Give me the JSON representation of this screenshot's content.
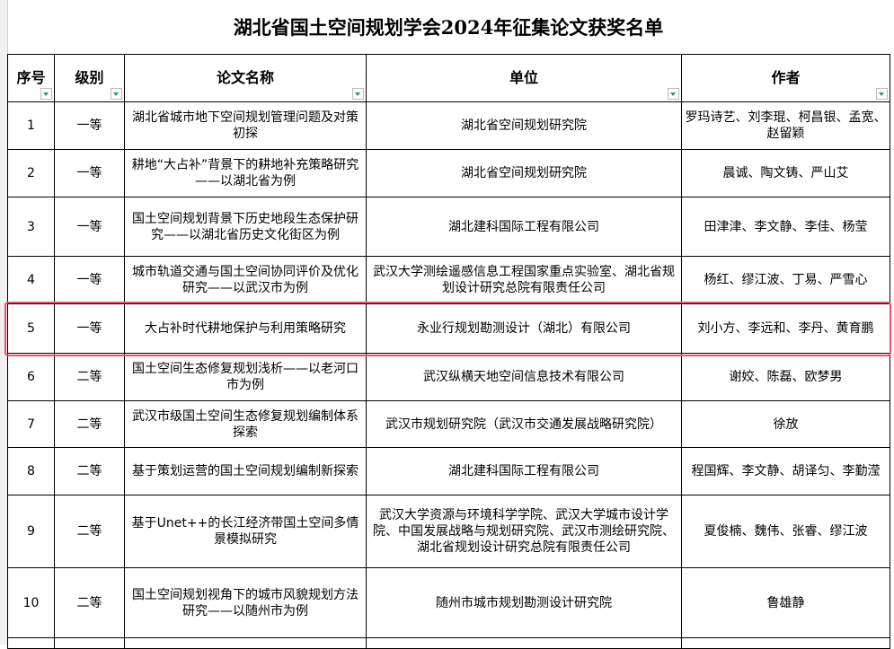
{
  "title": "湖北省国土空间规划学会2024年征集论文获奖名单",
  "headers": [
    "序号",
    "级别",
    "论文名称",
    "单位",
    "作者"
  ],
  "highlight_color": "#f0506e",
  "filter_arrow_color": "#1aa260",
  "rows": [
    {
      "no": "1",
      "level": "一等",
      "paper": "湖北省城市地下空间规划管理问题及对策初探",
      "unit": "湖北省空间规划研究院",
      "authors": "罗玛诗艺、刘李琨、柯昌银、孟宽、赵留颖"
    },
    {
      "no": "2",
      "level": "一等",
      "paper": "耕地“大占补”背景下的耕地补充策略研究——以湖北省为例",
      "unit": "湖北省空间规划研究院",
      "authors": "晨诚、陶文铸、严山艾"
    },
    {
      "no": "3",
      "level": "一等",
      "paper": "国土空间规划背景下历史地段生态保护研究——以湖北省历史文化街区为例",
      "unit": "湖北建科国际工程有限公司",
      "authors": "田津津、李文静、李佳、杨莹"
    },
    {
      "no": "4",
      "level": "一等",
      "paper": "城市轨道交通与国土空间协同评价及优化研究——以武汉市为例",
      "unit": "武汉大学测绘遥感信息工程国家重点实验室、湖北省规划设计研究总院有限责任公司",
      "authors": "杨红、缪江波、丁易、严雪心"
    },
    {
      "no": "5",
      "level": "一等",
      "paper": "大占补时代耕地保护与利用策略研究",
      "unit": "永业行规划勘测设计（湖北）有限公司",
      "authors": "刘小方、李远和、李丹、黄育鹏"
    },
    {
      "no": "6",
      "level": "二等",
      "paper": "国土空间生态修复规划浅析——以老河口市为例",
      "unit": "武汉纵横天地空间信息技术有限公司",
      "authors": "谢姣、陈磊、欧梦男"
    },
    {
      "no": "7",
      "level": "二等",
      "paper": "武汉市级国土空间生态修复规划编制体系探索",
      "unit": "武汉市规划研究院（武汉市交通发展战略研究院）",
      "authors": "徐放"
    },
    {
      "no": "8",
      "level": "二等",
      "paper": "基于策划运营的国土空间规划编制新探索",
      "unit": "湖北建科国际工程有限公司",
      "authors": "程国辉、李文静、胡译匀、李勤滢"
    },
    {
      "no": "9",
      "level": "二等",
      "paper": "基于Unet++的长江经济带国土空间多情景模拟研究",
      "unit": "武汉大学资源与环境科学学院、武汉大学城市设计学院、中国发展战略与规划研究院、武汉市测绘研究院、湖北省规划设计研究总院有限责任公司",
      "authors": "夏俊楠、魏伟、张睿、缪江波"
    },
    {
      "no": "10",
      "level": "二等",
      "paper": "国土空间规划视角下的城市风貌规划方法研究——以随州市为例",
      "unit": "随州市城市规划勘测设计研究院",
      "authors": "鲁雄静"
    }
  ]
}
